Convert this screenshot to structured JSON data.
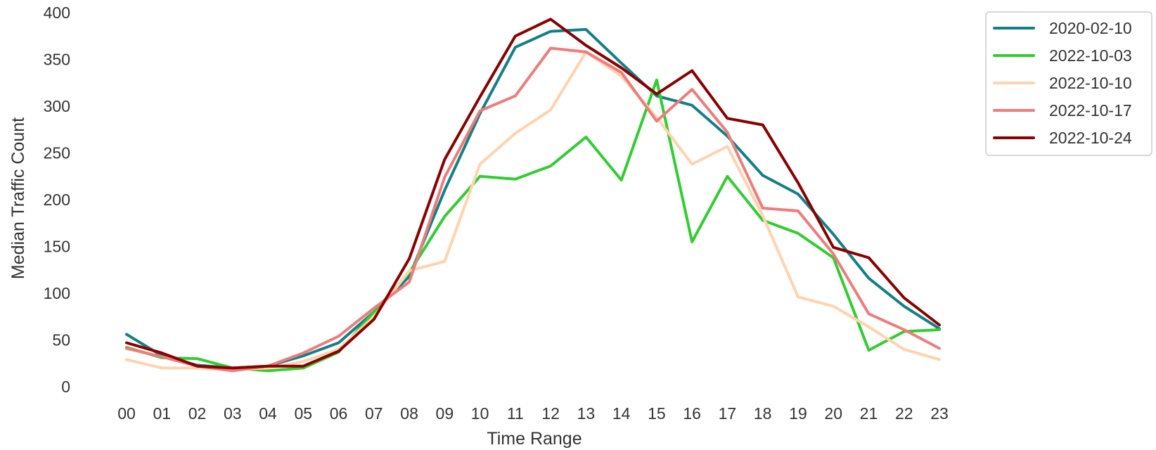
{
  "chart_data": {
    "type": "line",
    "title": "",
    "xlabel": "Time Range",
    "ylabel": "Median Traffic Count",
    "categories": [
      "00",
      "01",
      "02",
      "03",
      "04",
      "05",
      "06",
      "07",
      "08",
      "09",
      "10",
      "11",
      "12",
      "13",
      "14",
      "15",
      "16",
      "17",
      "18",
      "19",
      "20",
      "21",
      "22",
      "23"
    ],
    "yticks": [
      "0",
      "50",
      "100",
      "150",
      "200",
      "250",
      "300",
      "350",
      "400"
    ],
    "ylim": [
      0,
      400
    ],
    "grid": false,
    "legend_position": "top-right",
    "series": [
      {
        "name": "2020-02-10",
        "color": "#138086",
        "values": [
          56,
          33,
          23,
          20,
          22,
          33,
          47,
          80,
          118,
          210,
          292,
          363,
          380,
          382,
          346,
          311,
          301,
          268,
          226,
          206,
          163,
          116,
          86,
          62
        ]
      },
      {
        "name": "2022-10-03",
        "color": "#32CD32",
        "values": [
          42,
          31,
          30,
          20,
          17,
          20,
          37,
          80,
          122,
          182,
          225,
          222,
          236,
          267,
          221,
          328,
          155,
          225,
          178,
          164,
          138,
          39,
          59,
          61
        ]
      },
      {
        "name": "2022-10-10",
        "color": "#FFD3AE",
        "values": [
          29,
          20,
          20,
          18,
          20,
          27,
          40,
          75,
          124,
          134,
          238,
          271,
          296,
          358,
          332,
          288,
          238,
          257,
          183,
          96,
          86,
          64,
          40,
          29
        ]
      },
      {
        "name": "2022-10-17",
        "color": "#EF7C7C",
        "values": [
          41,
          32,
          22,
          17,
          22,
          36,
          54,
          84,
          112,
          224,
          295,
          311,
          362,
          358,
          336,
          284,
          318,
          272,
          191,
          188,
          142,
          78,
          61,
          41
        ]
      },
      {
        "name": "2022-10-24",
        "color": "#8B0000",
        "values": [
          47,
          36,
          22,
          20,
          22,
          22,
          38,
          72,
          137,
          243,
          310,
          375,
          393,
          365,
          341,
          313,
          338,
          287,
          280,
          218,
          149,
          138,
          95,
          66
        ]
      }
    ]
  }
}
